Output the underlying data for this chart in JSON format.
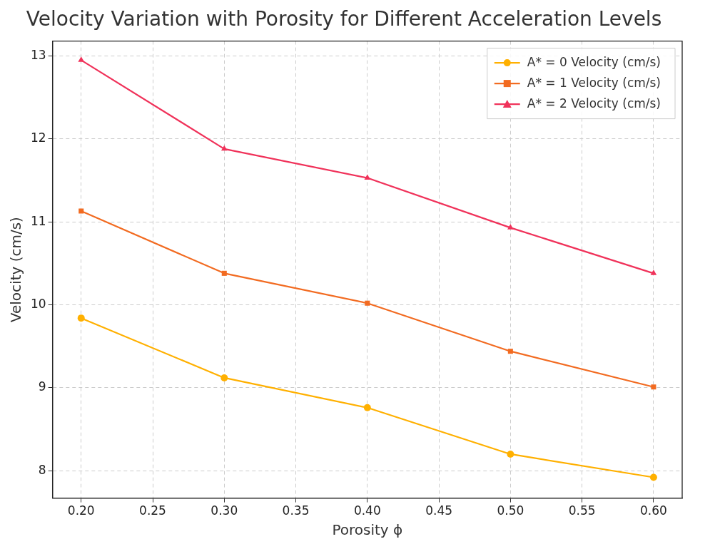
{
  "chart_data": {
    "type": "line",
    "title": "Velocity Variation with Porosity for Different Acceleration Levels",
    "xlabel": "Porosity ϕ",
    "ylabel": "Velocity (cm/s)",
    "x": [
      0.2,
      0.3,
      0.4,
      0.5,
      0.6
    ],
    "series": [
      {
        "name": "A* = 0 Velocity (cm/s)",
        "color": "#ffb000",
        "marker": "circle",
        "values": [
          9.84,
          9.12,
          8.76,
          8.2,
          7.92
        ]
      },
      {
        "name": "A* = 1 Velocity (cm/s)",
        "color": "#f26b21",
        "marker": "square",
        "values": [
          11.13,
          10.38,
          10.02,
          9.44,
          9.01
        ]
      },
      {
        "name": "A* = 2 Velocity (cm/s)",
        "color": "#f0325a",
        "marker": "triangle",
        "values": [
          12.95,
          11.88,
          11.53,
          10.93,
          10.38
        ]
      }
    ],
    "xlim": [
      0.18,
      0.62
    ],
    "xticks": [
      {
        "value": 0.2,
        "label": "0.20"
      },
      {
        "value": 0.25,
        "label": "0.25"
      },
      {
        "value": 0.3,
        "label": "0.30"
      },
      {
        "value": 0.35,
        "label": "0.35"
      },
      {
        "value": 0.4,
        "label": "0.40"
      },
      {
        "value": 0.45,
        "label": "0.45"
      },
      {
        "value": 0.5,
        "label": "0.50"
      },
      {
        "value": 0.55,
        "label": "0.55"
      },
      {
        "value": 0.6,
        "label": "0.60"
      }
    ],
    "ylim": [
      7.67,
      13.18
    ],
    "yticks": [
      8,
      9,
      10,
      11,
      12,
      13
    ],
    "grid": true,
    "legend": "top right",
    "line_style": "solid"
  }
}
